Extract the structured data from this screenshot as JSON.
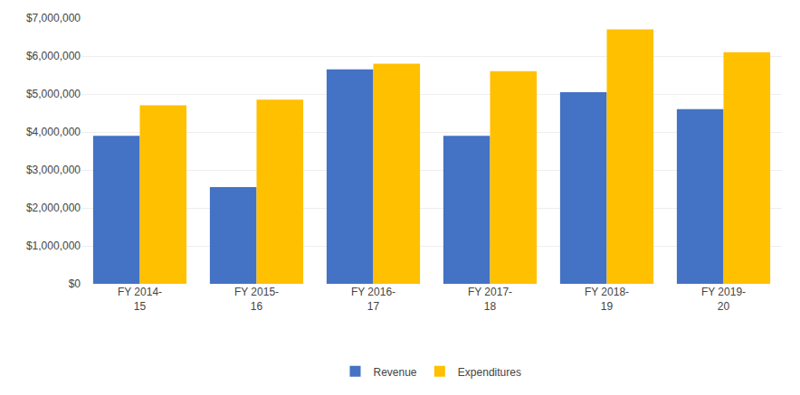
{
  "chart_data": {
    "type": "bar",
    "categories": [
      "FY 2014-\n15",
      "FY 2015-\n16",
      "FY 2016-\n17",
      "FY 2017-\n18",
      "FY 2018-\n19",
      "FY 2019-\n20"
    ],
    "series": [
      {
        "name": "Revenue",
        "color": "#4472C4",
        "values": [
          3900000,
          2550000,
          5650000,
          3900000,
          5050000,
          4600000
        ]
      },
      {
        "name": "Expenditures",
        "color": "#FFC000",
        "values": [
          4700000,
          4850000,
          5800000,
          5600000,
          6700000,
          6100000
        ]
      }
    ],
    "ylim": [
      0,
      7000000
    ],
    "yticks": [
      {
        "value": 0,
        "label": "$0"
      },
      {
        "value": 1000000,
        "label": "$1,000,000"
      },
      {
        "value": 2000000,
        "label": "$2,000,000"
      },
      {
        "value": 3000000,
        "label": "$3,000,000"
      },
      {
        "value": 4000000,
        "label": "$4,000,000"
      },
      {
        "value": 5000000,
        "label": "$5,000,000"
      },
      {
        "value": 6000000,
        "label": "$6,000,000"
      },
      {
        "value": 7000000,
        "label": "$7,000,000"
      }
    ],
    "grid": true,
    "legend": "bottom"
  }
}
